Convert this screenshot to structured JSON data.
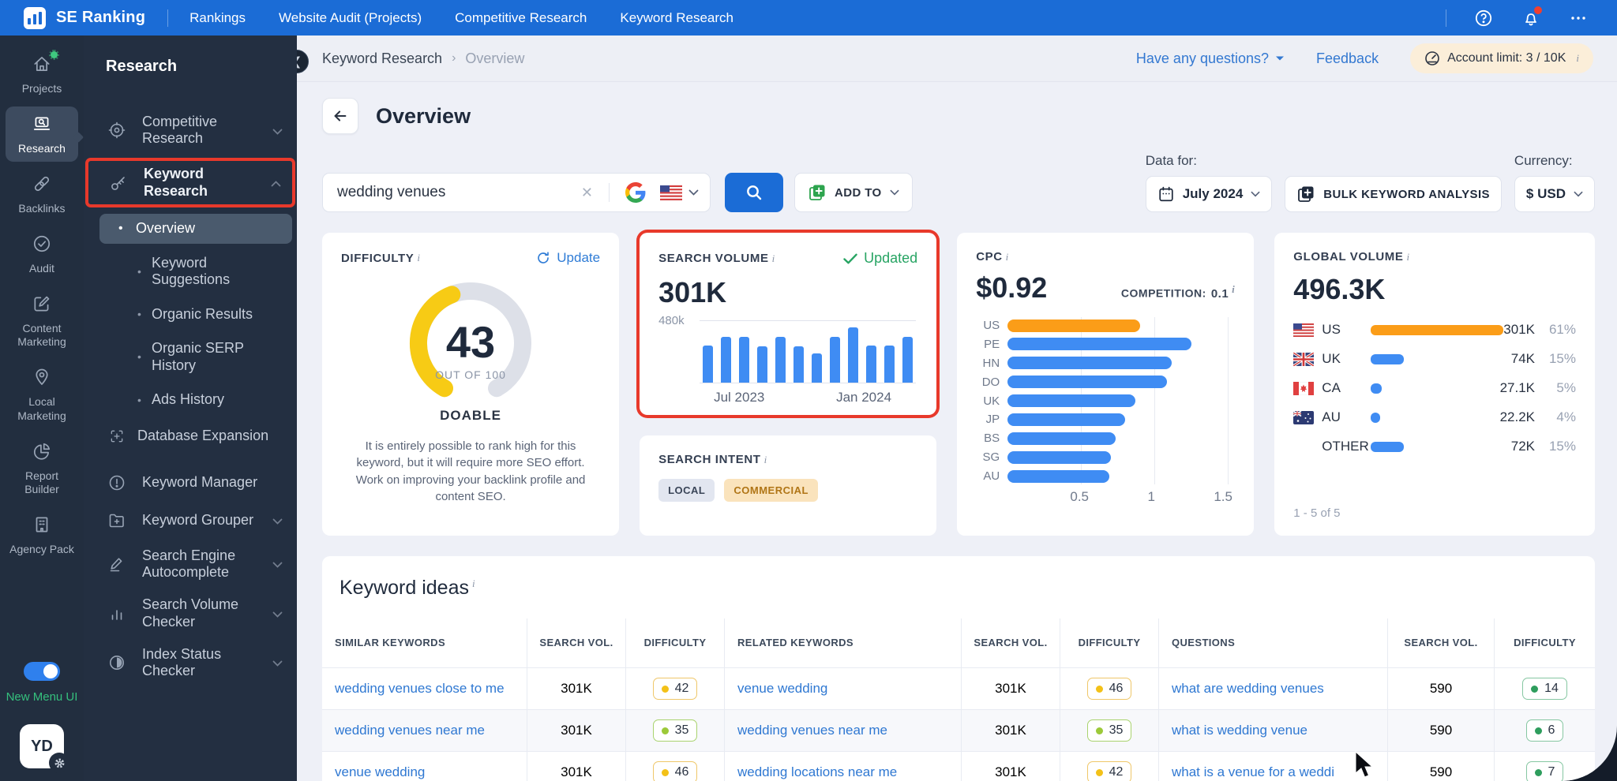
{
  "topbar": {
    "logo": "SE Ranking",
    "nav": [
      "Rankings",
      "Website Audit (Projects)",
      "Competitive Research",
      "Keyword Research"
    ],
    "colors": {
      "bg": "#1b6cd6"
    }
  },
  "icon_sidebar": {
    "items": [
      {
        "label": "Projects",
        "icon": "home-icon",
        "badge": true,
        "active": false
      },
      {
        "label": "Research",
        "icon": "research-icon",
        "badge": false,
        "active": true
      },
      {
        "label": "Backlinks",
        "icon": "link-icon",
        "badge": false,
        "active": false
      },
      {
        "label": "Audit",
        "icon": "check-circle-icon",
        "badge": false,
        "active": false
      },
      {
        "label": "Content Marketing",
        "icon": "edit-icon",
        "badge": false,
        "active": false
      },
      {
        "label": "Local Marketing",
        "icon": "pin-icon",
        "badge": false,
        "active": false
      },
      {
        "label": "Report Builder",
        "icon": "pie-icon",
        "badge": false,
        "active": false
      },
      {
        "label": "Agency Pack",
        "icon": "building-icon",
        "badge": false,
        "active": false
      }
    ],
    "toggle_label": "New Menu UI",
    "avatar": "YD"
  },
  "panel": {
    "title": "Research",
    "items": [
      {
        "label": "Competitive Research",
        "icon": "target-icon",
        "chevron": "down"
      },
      {
        "label": "Keyword Research",
        "icon": "key-icon",
        "chevron": "up",
        "annotated": true
      },
      {
        "label": "Overview",
        "sub": true,
        "active": true
      },
      {
        "label": "Keyword Suggestions",
        "sub": true
      },
      {
        "label": "Organic Results",
        "sub": true
      },
      {
        "label": "Organic SERP History",
        "sub": true
      },
      {
        "label": "Ads History",
        "sub": true
      },
      {
        "label": "Database Expansion",
        "sub": true,
        "icon": "expand-icon"
      },
      {
        "label": "Keyword Manager",
        "icon": "alert-circle-icon"
      },
      {
        "label": "Keyword Grouper",
        "icon": "folder-plus-icon",
        "chevron": "down"
      },
      {
        "label": "Search Engine Autocomplete",
        "icon": "pencil-line-icon",
        "chevron": "down"
      },
      {
        "label": "Search Volume Checker",
        "icon": "bars-icon",
        "chevron": "down"
      },
      {
        "label": "Index Status Checker",
        "icon": "half-circle-icon",
        "chevron": "down"
      }
    ]
  },
  "breadcrumb": {
    "section": "Keyword Research",
    "current": "Overview"
  },
  "crumb_right": {
    "questions": "Have any questions?",
    "feedback": "Feedback",
    "account_limit": "Account limit: 3 / 10K"
  },
  "page": {
    "title": "Overview"
  },
  "search": {
    "value": "wedding venues",
    "engine": "google",
    "country": "US"
  },
  "toolbar": {
    "add_to": "ADD TO",
    "data_for_label": "Data for:",
    "data_for_value": "July 2024",
    "bulk": "BULK KEYWORD ANALYSIS",
    "currency_label": "Currency:",
    "currency_value": "$ USD"
  },
  "cards": {
    "difficulty": {
      "title": "DIFFICULTY",
      "update": "Update",
      "value": 43,
      "out_of": "OUT OF 100",
      "verdict": "DOABLE",
      "desc": "It is entirely possible to rank high for this keyword, but it will require more SEO effort. Work on improving your backlink profile and content SEO.",
      "accent": "#f7cb15"
    },
    "search_volume": {
      "title": "SEARCH VOLUME",
      "updated": "Updated",
      "value": "301K",
      "y_max": "480k",
      "x_labels": [
        "Jul 2023",
        "Jan 2024"
      ],
      "chart_data": {
        "type": "bar",
        "x": [
          "Jun 2023",
          "Jul 2023",
          "Aug 2023",
          "Sep 2023",
          "Oct 2023",
          "Nov 2023",
          "Dec 2023",
          "Jan 2024",
          "Feb 2024",
          "Mar 2024",
          "Apr 2024",
          "May 2024"
        ],
        "values": [
          290,
          360,
          360,
          285,
          355,
          285,
          230,
          355,
          430,
          290,
          290,
          360
        ],
        "ylim": [
          0,
          480
        ],
        "bar_color": "#3f8cf3"
      }
    },
    "search_intent": {
      "title": "SEARCH INTENT",
      "badges": [
        {
          "label": "LOCAL",
          "style": "neutral"
        },
        {
          "label": "COMMERCIAL",
          "style": "commercial"
        }
      ]
    },
    "cpc": {
      "title": "CPC",
      "value": "$0.92",
      "competition_label": "COMPETITION:",
      "competition_value": "0.1",
      "chart_data": {
        "type": "bar-horizontal",
        "categories": [
          "US",
          "PE",
          "HN",
          "DO",
          "UK",
          "JP",
          "BS",
          "SG",
          "AU"
        ],
        "values": [
          0.92,
          1.28,
          1.14,
          1.11,
          0.89,
          0.82,
          0.75,
          0.72,
          0.71
        ],
        "highlight": "US",
        "xticks": [
          0.5,
          1,
          1.5
        ],
        "xlim": [
          0,
          1.55
        ],
        "bar_color": "#3f8cf3",
        "highlight_color": "#fb9d18"
      }
    },
    "global_volume": {
      "title": "GLOBAL VOLUME",
      "value": "496.3K",
      "rows": [
        {
          "code": "US",
          "flag": "us-flag-icon",
          "value": "301K",
          "pct": "61%",
          "pct_num": 61,
          "highlight": true
        },
        {
          "code": "UK",
          "flag": "uk-flag-icon",
          "value": "74K",
          "pct": "15%",
          "pct_num": 15,
          "highlight": false
        },
        {
          "code": "CA",
          "flag": "ca-flag-icon",
          "value": "27.1K",
          "pct": "5%",
          "pct_num": 5,
          "highlight": false
        },
        {
          "code": "AU",
          "flag": "au-flag-icon",
          "value": "22.2K",
          "pct": "4%",
          "pct_num": 4,
          "highlight": false
        },
        {
          "code": "OTHER",
          "flag": "",
          "value": "72K",
          "pct": "15%",
          "pct_num": 15,
          "highlight": false
        }
      ],
      "footer": "1 - 5 of 5"
    }
  },
  "keyword_ideas": {
    "title": "Keyword ideas",
    "columns": [
      "SIMILAR KEYWORDS",
      "SEARCH VOL.",
      "DIFFICULTY",
      "RELATED KEYWORDS",
      "SEARCH VOL.",
      "DIFFICULTY",
      "QUESTIONS",
      "SEARCH VOL.",
      "DIFFICULTY"
    ],
    "rows": [
      {
        "similar": {
          "kw": "wedding venues close to me",
          "vol": "301K",
          "diff": 42,
          "level": "yellow"
        },
        "related": {
          "kw": "venue wedding",
          "vol": "301K",
          "diff": 46,
          "level": "yellow"
        },
        "question": {
          "kw": "what are wedding venues",
          "vol": "590",
          "diff": 14,
          "level": "green"
        }
      },
      {
        "similar": {
          "kw": "wedding venues near me",
          "vol": "301K",
          "diff": 35,
          "level": "lightgreen"
        },
        "related": {
          "kw": "wedding venues near me",
          "vol": "301K",
          "diff": 35,
          "level": "lightgreen"
        },
        "question": {
          "kw": "what is wedding venue",
          "vol": "590",
          "diff": 6,
          "level": "green"
        }
      },
      {
        "similar": {
          "kw": "venue wedding",
          "vol": "301K",
          "diff": 46,
          "level": "yellow"
        },
        "related": {
          "kw": "wedding locations near me",
          "vol": "301K",
          "diff": 42,
          "level": "yellow"
        },
        "question": {
          "kw": "what is a venue for a weddi",
          "vol": "590",
          "diff": 7,
          "level": "green"
        }
      }
    ],
    "badge_colors": {
      "yellow": {
        "border": "#efc769",
        "dot": "#f3c118"
      },
      "lightgreen": {
        "border": "#a9d36e",
        "dot": "#9cc939"
      },
      "green": {
        "border": "#86c7a2",
        "dot": "#2e9d5d"
      }
    }
  }
}
